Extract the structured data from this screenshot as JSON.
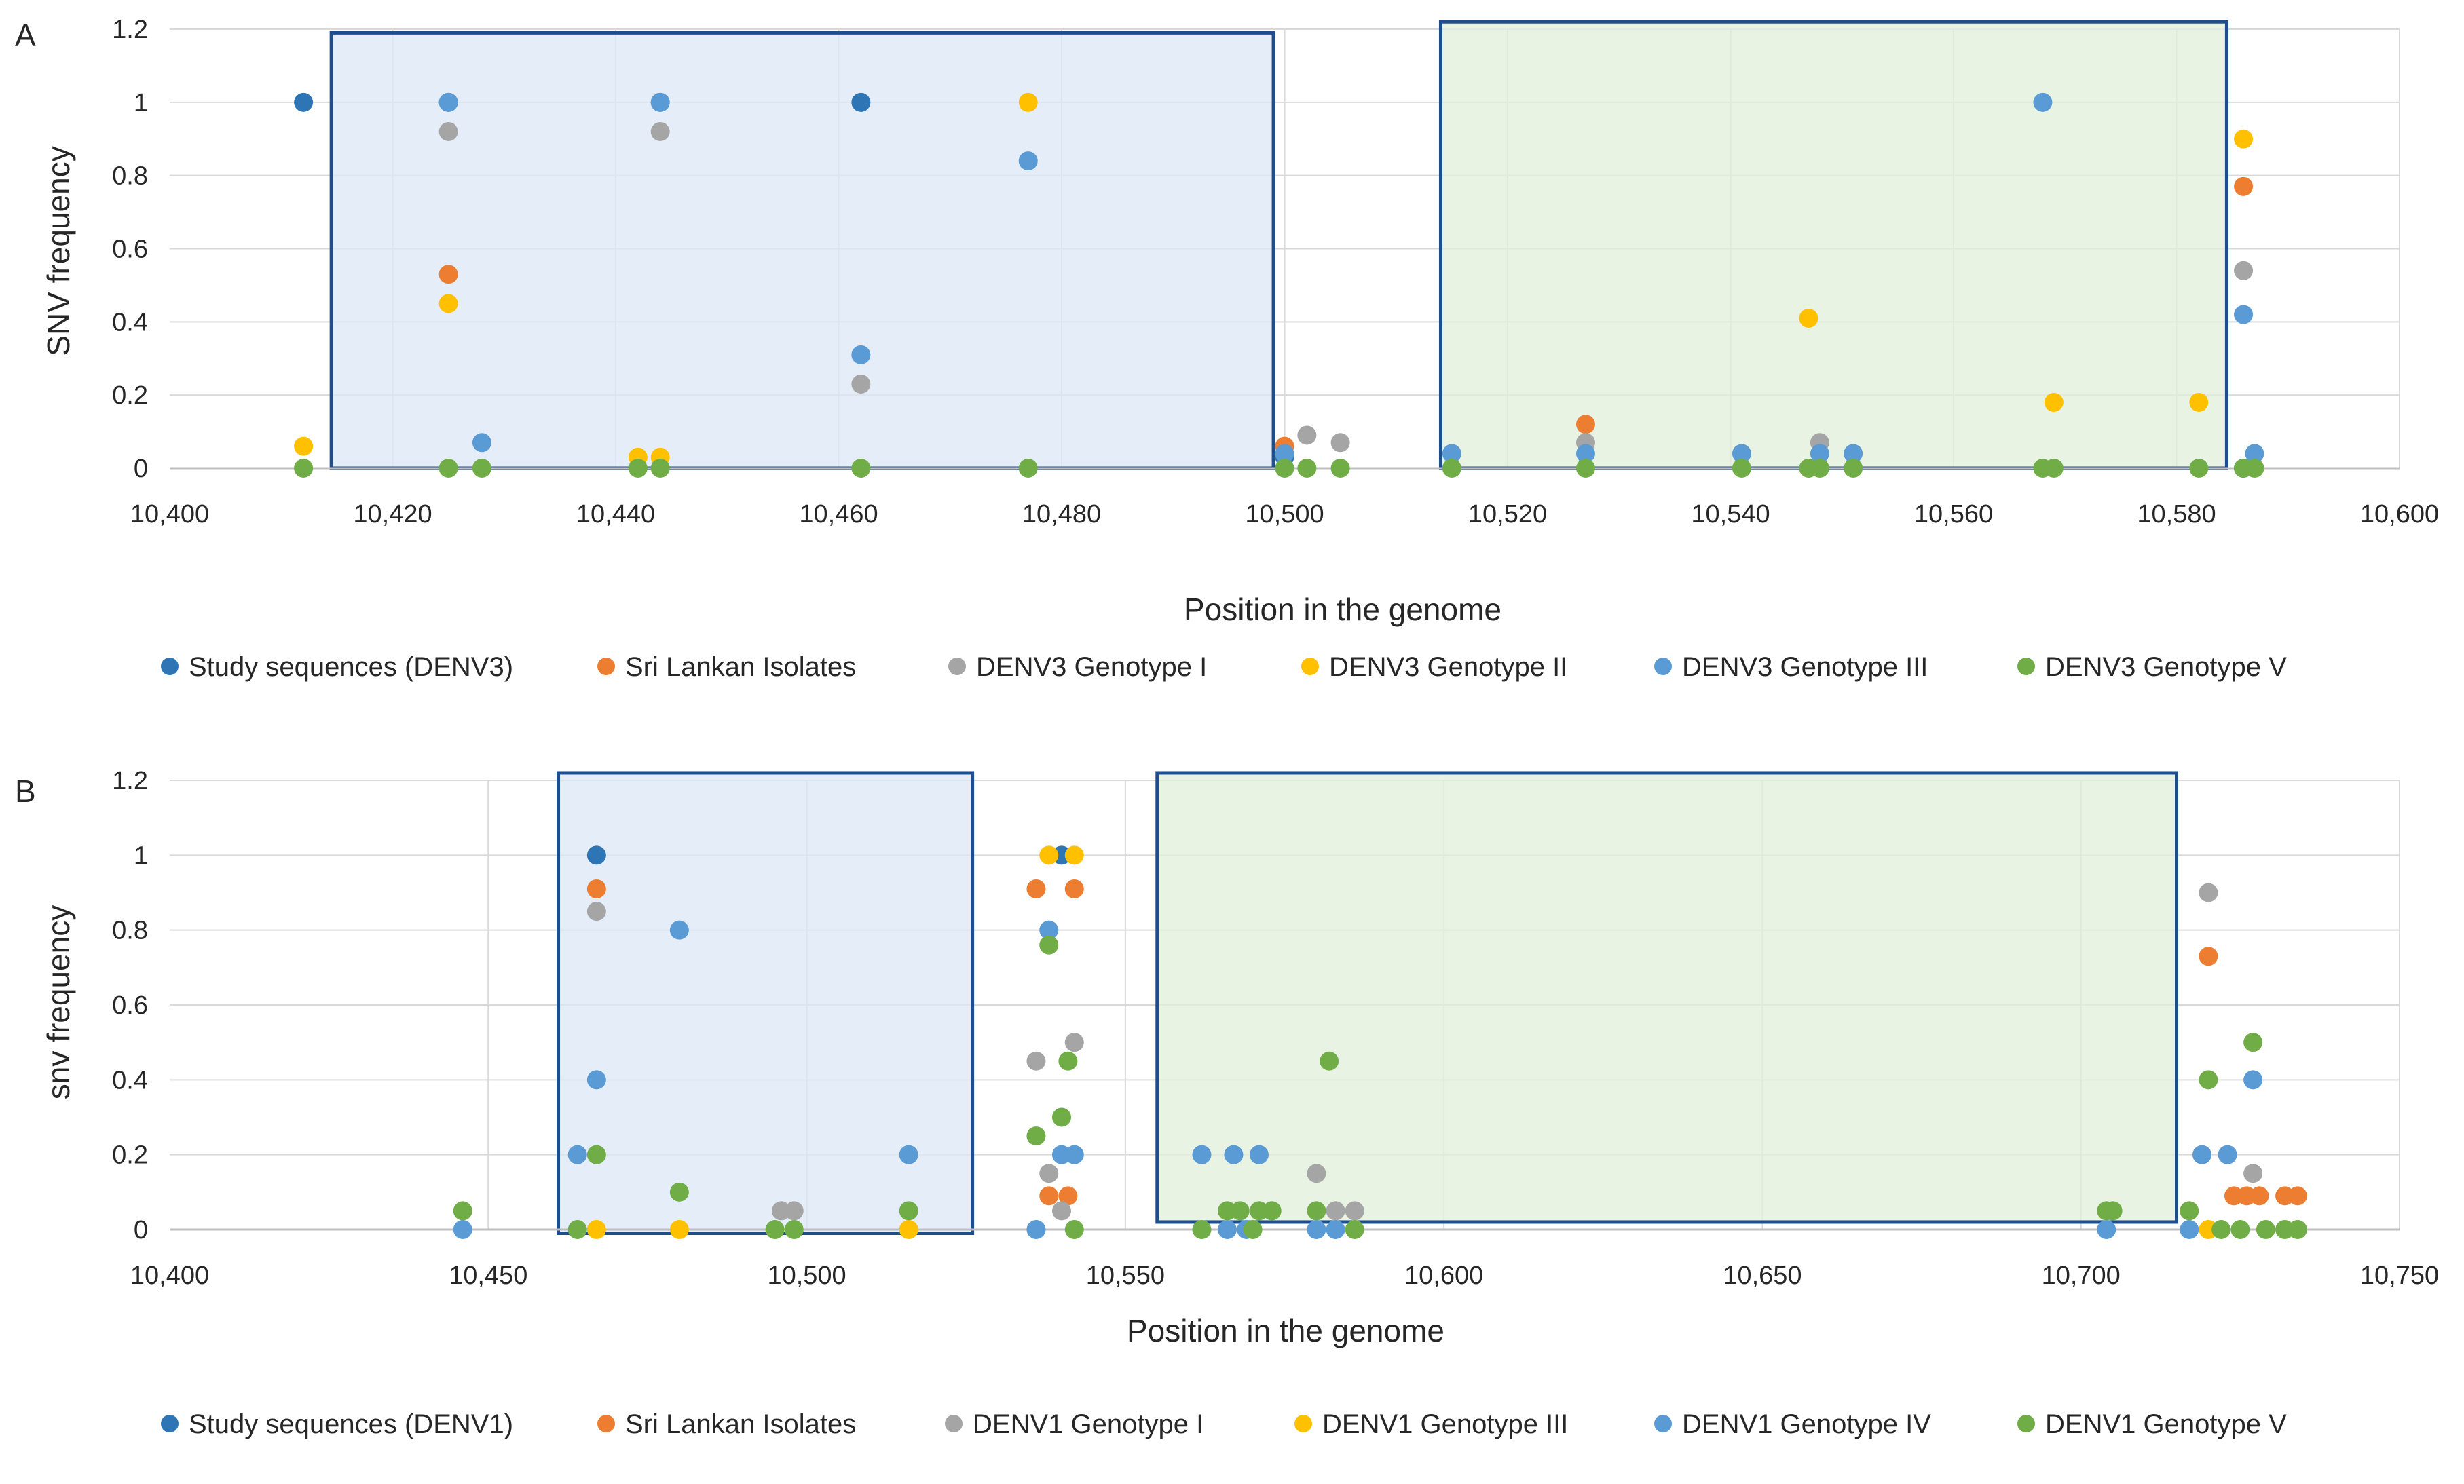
{
  "chart_data": [
    {
      "type": "scatter",
      "panel_label": "A",
      "xlabel": "Position in the genome",
      "ylabel": "SNV frequency",
      "xlim": [
        10400,
        10600
      ],
      "ylim": [
        0,
        1.2
      ],
      "x_ticks": [
        10400,
        10420,
        10440,
        10460,
        10480,
        10500,
        10520,
        10540,
        10560,
        10580,
        10600
      ],
      "x_tick_labels": [
        "10,400",
        "10,420",
        "10,440",
        "10,460",
        "10,480",
        "10,500",
        "10,520",
        "10,540",
        "10,560",
        "10,580",
        "10,600"
      ],
      "y_ticks": [
        0,
        0.2,
        0.4,
        0.6,
        0.8,
        1,
        1.2
      ],
      "y_tick_labels": [
        "0",
        "0.2",
        "0.4",
        "0.6",
        "0.8",
        "1",
        "1.2"
      ],
      "grid": true,
      "legend_position": "bottom",
      "highlight_regions": [
        {
          "name": "blue-region",
          "x_start": 10414.5,
          "x_end": 10499,
          "y_start": 0,
          "y_end": 1.19,
          "fill": "#dce8f6",
          "stroke": "#1f4e8c"
        },
        {
          "name": "green-region",
          "x_start": 10514,
          "x_end": 10584.5,
          "y_start": 0,
          "y_end": 1.22,
          "fill": "#e2efd9",
          "stroke": "#1f4e8c"
        }
      ],
      "series": [
        {
          "name": "Study sequences (DENV3)",
          "color": "#2e75b6",
          "points": [
            [
              10412,
              1.0
            ],
            [
              10425,
              1.0
            ],
            [
              10444,
              1.0
            ],
            [
              10462,
              1.0
            ],
            [
              10500,
              0.03
            ],
            [
              10586,
              0.0
            ]
          ]
        },
        {
          "name": "Sri Lankan Isolates",
          "color": "#ed7d31",
          "points": [
            [
              10425,
              0.53
            ],
            [
              10500,
              0.06
            ],
            [
              10527,
              0.12
            ],
            [
              10586,
              0.77
            ]
          ]
        },
        {
          "name": "DENV3 Genotype I",
          "color": "#a5a5a5",
          "points": [
            [
              10425,
              0.92
            ],
            [
              10444,
              0.92
            ],
            [
              10462,
              0.23
            ],
            [
              10502,
              0.09
            ],
            [
              10505,
              0.07
            ],
            [
              10527,
              0.07
            ],
            [
              10548,
              0.07
            ],
            [
              10586,
              0.54
            ]
          ]
        },
        {
          "name": "DENV3 Genotype II",
          "color": "#ffc000",
          "points": [
            [
              10412,
              0.06
            ],
            [
              10425,
              0.45
            ],
            [
              10442,
              0.03
            ],
            [
              10444,
              0.03
            ],
            [
              10477,
              1.0
            ],
            [
              10547,
              0.41
            ],
            [
              10569,
              0.18
            ],
            [
              10582,
              0.18
            ],
            [
              10586,
              0.9
            ]
          ]
        },
        {
          "name": "DENV3 Genotype III",
          "color": "#5b9bd5",
          "points": [
            [
              10425,
              1.0
            ],
            [
              10428,
              0.07
            ],
            [
              10444,
              1.0
            ],
            [
              10462,
              0.31
            ],
            [
              10477,
              0.84
            ],
            [
              10500,
              0.04
            ],
            [
              10515,
              0.04
            ],
            [
              10527,
              0.04
            ],
            [
              10541,
              0.04
            ],
            [
              10548,
              0.04
            ],
            [
              10551,
              0.04
            ],
            [
              10568,
              1.0
            ],
            [
              10586,
              0.42
            ],
            [
              10587,
              0.04
            ]
          ]
        },
        {
          "name": "DENV3 Genotype V",
          "color": "#70ad47",
          "points": [
            [
              10412,
              0.0
            ],
            [
              10425,
              0.0
            ],
            [
              10428,
              0.0
            ],
            [
              10442,
              0.0
            ],
            [
              10444,
              0.0
            ],
            [
              10462,
              0.0
            ],
            [
              10477,
              0.0
            ],
            [
              10500,
              0.0
            ],
            [
              10502,
              0.0
            ],
            [
              10505,
              0.0
            ],
            [
              10515,
              0.0
            ],
            [
              10527,
              0.0
            ],
            [
              10541,
              0.0
            ],
            [
              10547,
              0.0
            ],
            [
              10548,
              0.0
            ],
            [
              10551,
              0.0
            ],
            [
              10568,
              0.0
            ],
            [
              10569,
              0.0
            ],
            [
              10582,
              0.0
            ],
            [
              10586,
              0.0
            ],
            [
              10587,
              0.0
            ]
          ]
        }
      ]
    },
    {
      "type": "scatter",
      "panel_label": "B",
      "xlabel": "Position in the genome",
      "ylabel": "snv frequency",
      "xlim": [
        10400,
        10750
      ],
      "ylim": [
        0,
        1.2
      ],
      "x_ticks": [
        10400,
        10450,
        10500,
        10550,
        10600,
        10650,
        10700,
        10750
      ],
      "x_tick_labels": [
        "10,400",
        "10,450",
        "10,500",
        "10,550",
        "10,600",
        "10,650",
        "10,700",
        "10,750"
      ],
      "y_ticks": [
        0,
        0.2,
        0.4,
        0.6,
        0.8,
        1,
        1.2
      ],
      "y_tick_labels": [
        "0",
        "0.2",
        "0.4",
        "0.6",
        "0.8",
        "1",
        "1.2"
      ],
      "grid": true,
      "legend_position": "bottom",
      "highlight_regions": [
        {
          "name": "blue-region",
          "x_start": 10461,
          "x_end": 10526,
          "y_start": -0.01,
          "y_end": 1.22,
          "fill": "#dce8f6",
          "stroke": "#1f4e8c"
        },
        {
          "name": "green-region",
          "x_start": 10555,
          "x_end": 10715,
          "y_start": 0.02,
          "y_end": 1.22,
          "fill": "#e2efd9",
          "stroke": "#1f4e8c"
        }
      ],
      "series": [
        {
          "name": "Study sequences (DENV1)",
          "color": "#2e75b6",
          "points": [
            [
              10467,
              1.0
            ],
            [
              10540,
              1.0
            ]
          ]
        },
        {
          "name": "Sri Lankan Isolates",
          "color": "#ed7d31",
          "points": [
            [
              10467,
              0.91
            ],
            [
              10536,
              0.91
            ],
            [
              10538,
              0.09
            ],
            [
              10541,
              0.09
            ],
            [
              10542,
              0.91
            ],
            [
              10720,
              0.73
            ],
            [
              10724,
              0.09
            ],
            [
              10726,
              0.09
            ],
            [
              10728,
              0.09
            ],
            [
              10732,
              0.09
            ],
            [
              10734,
              0.09
            ]
          ]
        },
        {
          "name": "DENV1 Genotype I",
          "color": "#a5a5a5",
          "points": [
            [
              10467,
              0.85
            ],
            [
              10536,
              0.45
            ],
            [
              10538,
              0.15
            ],
            [
              10540,
              0.05
            ],
            [
              10542,
              0.5
            ],
            [
              10580,
              0.15
            ],
            [
              10583,
              0.05
            ],
            [
              10586,
              0.05
            ],
            [
              10496,
              0.05
            ],
            [
              10498,
              0.05
            ],
            [
              10720,
              0.9
            ],
            [
              10727,
              0.15
            ]
          ]
        },
        {
          "name": "DENV1 Genotype III",
          "color": "#ffc000",
          "points": [
            [
              10467,
              0.0
            ],
            [
              10480,
              0.0
            ],
            [
              10516,
              0.0
            ],
            [
              10538,
              1.0
            ],
            [
              10542,
              1.0
            ],
            [
              10720,
              0.0
            ]
          ]
        },
        {
          "name": "DENV1 Genotype IV",
          "color": "#5b9bd5",
          "points": [
            [
              10446,
              0.0
            ],
            [
              10464,
              0.2
            ],
            [
              10467,
              0.4
            ],
            [
              10480,
              0.8
            ],
            [
              10516,
              0.2
            ],
            [
              10536,
              0.0
            ],
            [
              10538,
              0.8
            ],
            [
              10540,
              0.2
            ],
            [
              10542,
              0.2
            ],
            [
              10562,
              0.2
            ],
            [
              10567,
              0.2
            ],
            [
              10571,
              0.2
            ],
            [
              10566,
              0.0
            ],
            [
              10569,
              0.0
            ],
            [
              10580,
              0.0
            ],
            [
              10583,
              0.0
            ],
            [
              10704,
              0.0
            ],
            [
              10717,
              0.0
            ],
            [
              10719,
              0.2
            ],
            [
              10723,
              0.2
            ],
            [
              10727,
              0.4
            ]
          ]
        },
        {
          "name": "DENV1 Genotype V",
          "color": "#70ad47",
          "points": [
            [
              10446,
              0.05
            ],
            [
              10464,
              0.0
            ],
            [
              10467,
              0.2
            ],
            [
              10480,
              0.1
            ],
            [
              10495,
              0.0
            ],
            [
              10498,
              0.0
            ],
            [
              10516,
              0.05
            ],
            [
              10536,
              0.25
            ],
            [
              10538,
              0.76
            ],
            [
              10540,
              0.3
            ],
            [
              10541,
              0.45
            ],
            [
              10542,
              0.0
            ],
            [
              10562,
              0.0
            ],
            [
              10566,
              0.05
            ],
            [
              10568,
              0.05
            ],
            [
              10570,
              0.0
            ],
            [
              10571,
              0.05
            ],
            [
              10573,
              0.05
            ],
            [
              10580,
              0.05
            ],
            [
              10582,
              0.45
            ],
            [
              10586,
              0.0
            ],
            [
              10704,
              0.05
            ],
            [
              10705,
              0.05
            ],
            [
              10717,
              0.05
            ],
            [
              10720,
              0.4
            ],
            [
              10722,
              0.0
            ],
            [
              10725,
              0.0
            ],
            [
              10727,
              0.5
            ],
            [
              10729,
              0.0
            ],
            [
              10732,
              0.0
            ],
            [
              10734,
              0.0
            ]
          ]
        }
      ]
    }
  ]
}
